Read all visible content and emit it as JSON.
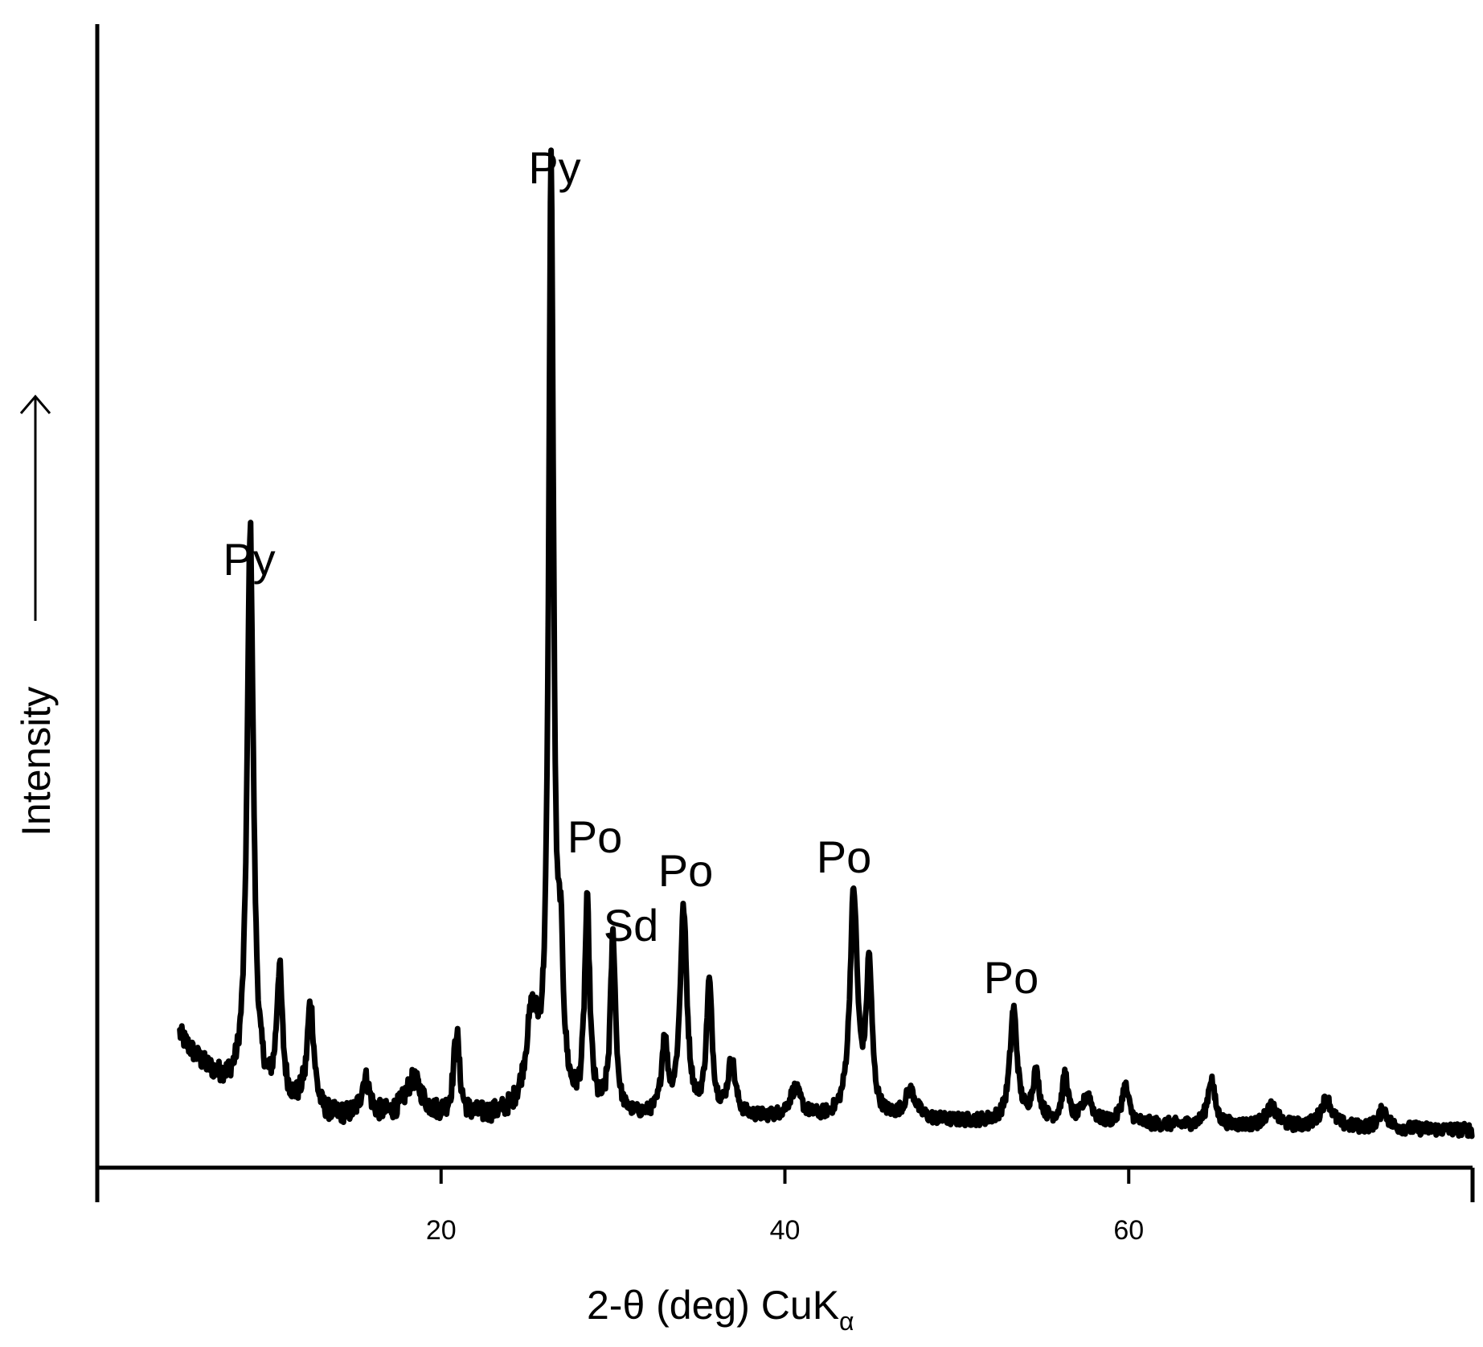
{
  "chart_data": {
    "type": "line",
    "xlabel": "2-θ (deg) CuK",
    "xlabel_subscript": "α",
    "ylabel": "Intensity",
    "xlim": [
      0,
      80
    ],
    "ylim": [
      0,
      100
    ],
    "xticks": [
      20,
      40,
      60
    ],
    "grid": false,
    "legend": "none",
    "series": [
      {
        "peaks": [
          {
            "x": 8.9,
            "y": 61,
            "w": 0.22
          },
          {
            "x": 10.6,
            "y": 14,
            "w": 0.2
          },
          {
            "x": 12.4,
            "y": 12,
            "w": 0.25
          },
          {
            "x": 15.6,
            "y": 4,
            "w": 0.3
          },
          {
            "x": 18.4,
            "y": 4,
            "w": 0.6
          },
          {
            "x": 20.9,
            "y": 9,
            "w": 0.2
          },
          {
            "x": 25.3,
            "y": 10,
            "w": 0.45
          },
          {
            "x": 26.4,
            "y": 100,
            "w": 0.17
          },
          {
            "x": 26.95,
            "y": 14,
            "w": 0.2
          },
          {
            "x": 28.5,
            "y": 22,
            "w": 0.18
          },
          {
            "x": 30.0,
            "y": 19,
            "w": 0.18
          },
          {
            "x": 33.0,
            "y": 8,
            "w": 0.2
          },
          {
            "x": 34.1,
            "y": 22,
            "w": 0.24
          },
          {
            "x": 35.6,
            "y": 14,
            "w": 0.2
          },
          {
            "x": 36.9,
            "y": 6,
            "w": 0.25
          },
          {
            "x": 40.6,
            "y": 3,
            "w": 0.4
          },
          {
            "x": 44.0,
            "y": 24,
            "w": 0.26
          },
          {
            "x": 44.9,
            "y": 16,
            "w": 0.2
          },
          {
            "x": 47.3,
            "y": 3,
            "w": 0.4
          },
          {
            "x": 53.3,
            "y": 12,
            "w": 0.25
          },
          {
            "x": 54.6,
            "y": 5,
            "w": 0.25
          },
          {
            "x": 56.3,
            "y": 5,
            "w": 0.2
          },
          {
            "x": 57.6,
            "y": 3,
            "w": 0.3
          },
          {
            "x": 59.8,
            "y": 4,
            "w": 0.25
          },
          {
            "x": 64.8,
            "y": 5,
            "w": 0.25
          },
          {
            "x": 68.3,
            "y": 2,
            "w": 0.4
          },
          {
            "x": 71.5,
            "y": 3,
            "w": 0.4
          },
          {
            "x": 74.8,
            "y": 2,
            "w": 0.3
          }
        ],
        "range": [
          4.8,
          80
        ]
      }
    ],
    "annotations": [
      {
        "text": "Py",
        "x": 8.9
      },
      {
        "text": "Py",
        "x": 26.4
      },
      {
        "text": "Po",
        "x": 28.9
      },
      {
        "text": "Sd",
        "x": 30.2
      },
      {
        "text": "Po",
        "x": 34.1
      },
      {
        "text": "Po",
        "x": 44.0
      },
      {
        "text": "Po",
        "x": 53.3
      }
    ]
  }
}
